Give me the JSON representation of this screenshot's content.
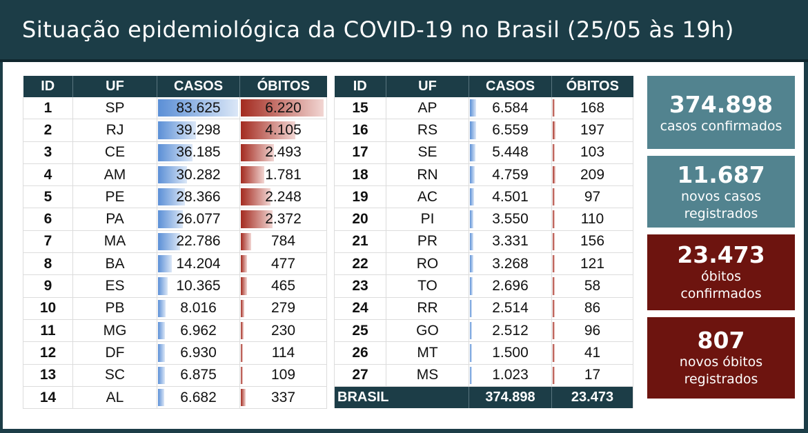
{
  "header": {
    "title": "Situação epidemiológica da COVID-19 no Brasil (25/05 às 19h)"
  },
  "columns": {
    "id": "ID",
    "uf": "UF",
    "casos": "CASOS",
    "obitos": "ÓBITOS"
  },
  "colors": {
    "header_bg": "#1c3d47",
    "teal": "#52838f",
    "maroon": "#6d140f",
    "cases_bar": "#5b8fd6",
    "deaths_bar": "#a32a1f"
  },
  "table_left": [
    {
      "id": "1",
      "uf": "SP",
      "casos": "83.625",
      "obitos": "6.220"
    },
    {
      "id": "2",
      "uf": "RJ",
      "casos": "39.298",
      "obitos": "4.105"
    },
    {
      "id": "3",
      "uf": "CE",
      "casos": "36.185",
      "obitos": "2.493"
    },
    {
      "id": "4",
      "uf": "AM",
      "casos": "30.282",
      "obitos": "1.781"
    },
    {
      "id": "5",
      "uf": "PE",
      "casos": "28.366",
      "obitos": "2.248"
    },
    {
      "id": "6",
      "uf": "PA",
      "casos": "26.077",
      "obitos": "2.372"
    },
    {
      "id": "7",
      "uf": "MA",
      "casos": "22.786",
      "obitos": "784"
    },
    {
      "id": "8",
      "uf": "BA",
      "casos": "14.204",
      "obitos": "477"
    },
    {
      "id": "9",
      "uf": "ES",
      "casos": "10.365",
      "obitos": "465"
    },
    {
      "id": "10",
      "uf": "PB",
      "casos": "8.016",
      "obitos": "279"
    },
    {
      "id": "11",
      "uf": "MG",
      "casos": "6.962",
      "obitos": "230"
    },
    {
      "id": "12",
      "uf": "DF",
      "casos": "6.930",
      "obitos": "114"
    },
    {
      "id": "13",
      "uf": "SC",
      "casos": "6.875",
      "obitos": "109"
    },
    {
      "id": "14",
      "uf": "AL",
      "casos": "6.682",
      "obitos": "337"
    }
  ],
  "table_right": [
    {
      "id": "15",
      "uf": "AP",
      "casos": "6.584",
      "obitos": "168"
    },
    {
      "id": "16",
      "uf": "RS",
      "casos": "6.559",
      "obitos": "197"
    },
    {
      "id": "17",
      "uf": "SE",
      "casos": "5.448",
      "obitos": "103"
    },
    {
      "id": "18",
      "uf": "RN",
      "casos": "4.759",
      "obitos": "209"
    },
    {
      "id": "19",
      "uf": "AC",
      "casos": "4.501",
      "obitos": "97"
    },
    {
      "id": "20",
      "uf": "PI",
      "casos": "3.550",
      "obitos": "110"
    },
    {
      "id": "21",
      "uf": "PR",
      "casos": "3.331",
      "obitos": "156"
    },
    {
      "id": "22",
      "uf": "RO",
      "casos": "3.268",
      "obitos": "121"
    },
    {
      "id": "23",
      "uf": "TO",
      "casos": "2.696",
      "obitos": "58"
    },
    {
      "id": "24",
      "uf": "RR",
      "casos": "2.514",
      "obitos": "86"
    },
    {
      "id": "25",
      "uf": "GO",
      "casos": "2.512",
      "obitos": "96"
    },
    {
      "id": "26",
      "uf": "MT",
      "casos": "1.500",
      "obitos": "41"
    },
    {
      "id": "27",
      "uf": "MS",
      "casos": "1.023",
      "obitos": "17"
    }
  ],
  "total": {
    "label": "BRASIL",
    "casos": "374.898",
    "obitos": "23.473"
  },
  "cards": [
    {
      "number": "374.898",
      "label_line1": "casos confirmados",
      "label_line2": ""
    },
    {
      "number": "11.687",
      "label_line1": "novos casos",
      "label_line2": "registrados"
    },
    {
      "number": "23.473",
      "label_line1": "óbitos",
      "label_line2": "confirmados"
    },
    {
      "number": "807",
      "label_line1": "novos óbitos",
      "label_line2": "registrados"
    }
  ]
}
